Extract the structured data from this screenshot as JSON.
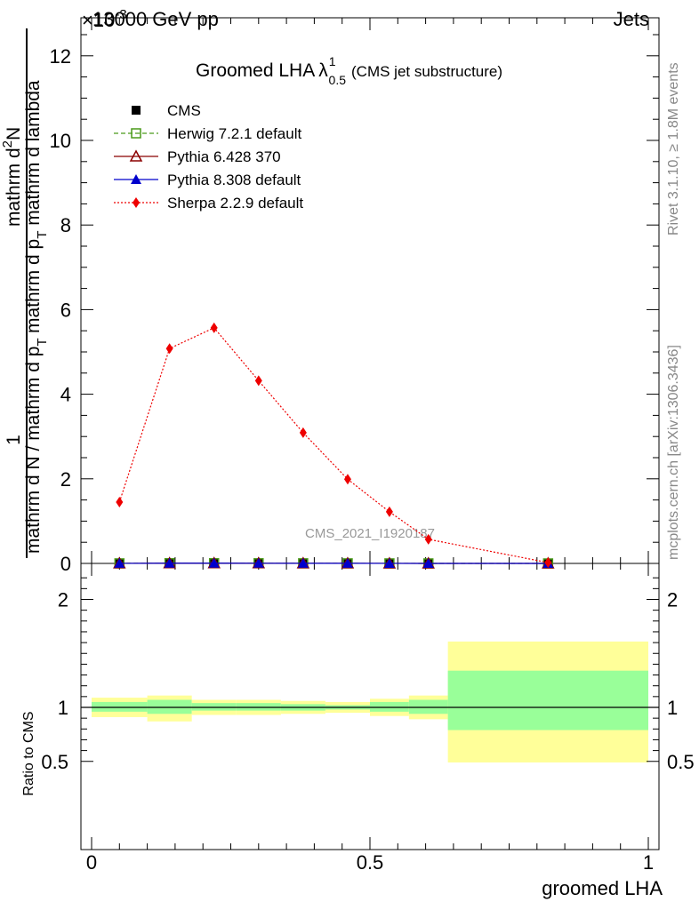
{
  "header": {
    "energy": "13000 GeV pp",
    "category": "Jets",
    "exponent": "×10",
    "exponent_power": "-3"
  },
  "main_title": {
    "prefix": "Groomed LHA",
    "lambda": "λ",
    "superscript": "1",
    "subscript": "0.5",
    "suffix": "(CMS jet substructure)"
  },
  "watermark": "CMS_2021_I1920187",
  "side_labels": {
    "rivet": "Rivet 3.1.10, ≥ 1.8M events",
    "mcplots": "mcplots.cern.ch [arXiv:1306.3436]"
  },
  "y_axis_label": {
    "one": "1",
    "denominator": "mathrm d N / mathrm d p",
    "denominator_sub": "T",
    "numerator": "mathrm d",
    "numerator_sup": "2",
    "numerator_rest": "N",
    "denominator2": "mathrm d p",
    "denominator2_sub": "T",
    "denominator2_rest": " mathrm d lambda"
  },
  "colors": {
    "cms": "#000000",
    "herwig": "#4a9a1a",
    "pythia6": "#8b0000",
    "pythia8": "#0000cc",
    "sherpa": "#ee0000",
    "band_inner": "#99ff99",
    "band_outer": "#ffff99"
  },
  "chart_data": [
    {
      "type": "line",
      "panel": "main",
      "title": "Groomed LHA λ^1_0.5 (CMS jet substructure)",
      "ylabel": "1 / (mathrm d N / mathrm d p_T) · mathrm d^2N / (mathrm d p_T mathrm d lambda)",
      "yscale_factor": "×10^-3",
      "xlim": [
        0,
        1
      ],
      "ylim": [
        0,
        12.6
      ],
      "yticks": [
        0,
        2,
        4,
        6,
        8,
        10,
        12
      ],
      "x_bin_edges": [
        0.0,
        0.1,
        0.18,
        0.26,
        0.34,
        0.42,
        0.5,
        0.57,
        0.64,
        1.0
      ],
      "series": [
        {
          "name": "CMS",
          "marker": "square-filled",
          "x": [
            0.05,
            0.14,
            0.22,
            0.3,
            0.38,
            0.46,
            0.535,
            0.605,
            0.82
          ],
          "y": [
            0.0015,
            0.0051,
            0.0056,
            0.0043,
            0.0031,
            0.002,
            0.0012,
            0.0006,
            2e-05
          ]
        },
        {
          "name": "Herwig 7.2.1 default",
          "marker": "square-open",
          "linestyle": "dashed",
          "x": [
            0.05,
            0.14,
            0.22,
            0.3,
            0.38,
            0.46,
            0.535,
            0.605,
            0.82
          ],
          "y": [
            0.0015,
            0.0051,
            0.0056,
            0.0043,
            0.0031,
            0.002,
            0.0012,
            0.0006,
            2e-05
          ]
        },
        {
          "name": "Pythia 6.428 370",
          "marker": "triangle-open",
          "linestyle": "solid",
          "x": [
            0.05,
            0.14,
            0.22,
            0.3,
            0.38,
            0.46,
            0.535,
            0.605,
            0.82
          ],
          "y": [
            0.0015,
            0.0051,
            0.0056,
            0.0043,
            0.0031,
            0.002,
            0.0012,
            0.0006,
            2e-05
          ]
        },
        {
          "name": "Pythia 8.308 default",
          "marker": "triangle-filled",
          "linestyle": "solid",
          "x": [
            0.05,
            0.14,
            0.22,
            0.3,
            0.38,
            0.46,
            0.535,
            0.605,
            0.82
          ],
          "y": [
            0.0015,
            0.0051,
            0.0056,
            0.0043,
            0.0031,
            0.002,
            0.0012,
            0.0006,
            2e-05
          ]
        },
        {
          "name": "Sherpa 2.2.9 default",
          "marker": "diamond-filled",
          "linestyle": "dotted",
          "x": [
            0.05,
            0.14,
            0.22,
            0.3,
            0.38,
            0.46,
            0.535,
            0.605,
            0.82
          ],
          "y": [
            1.45,
            5.08,
            5.57,
            4.32,
            3.09,
            1.99,
            1.22,
            0.57,
            0.02
          ]
        }
      ]
    },
    {
      "type": "area",
      "panel": "ratio",
      "ylabel": "Ratio to CMS",
      "xlabel": "groomed LHA",
      "xlim": [
        0,
        1
      ],
      "ylim": [
        0.35,
        2.3
      ],
      "yticks": [
        0.5,
        1,
        2
      ],
      "xticks": [
        0,
        0.5,
        1
      ],
      "x_bin_edges": [
        0.0,
        0.1,
        0.18,
        0.26,
        0.34,
        0.42,
        0.5,
        0.57,
        0.64,
        1.0
      ],
      "reference_line": 1,
      "inner_band": {
        "lo": [
          0.96,
          0.94,
          0.97,
          0.97,
          0.97,
          0.98,
          0.96,
          0.94,
          0.79
        ],
        "hi": [
          1.05,
          1.07,
          1.04,
          1.04,
          1.03,
          1.02,
          1.05,
          1.07,
          1.34
        ]
      },
      "outer_band": {
        "lo": [
          0.91,
          0.87,
          0.93,
          0.93,
          0.94,
          0.95,
          0.92,
          0.89,
          0.49
        ],
        "hi": [
          1.09,
          1.11,
          1.07,
          1.07,
          1.06,
          1.05,
          1.08,
          1.11,
          1.61
        ]
      }
    }
  ]
}
